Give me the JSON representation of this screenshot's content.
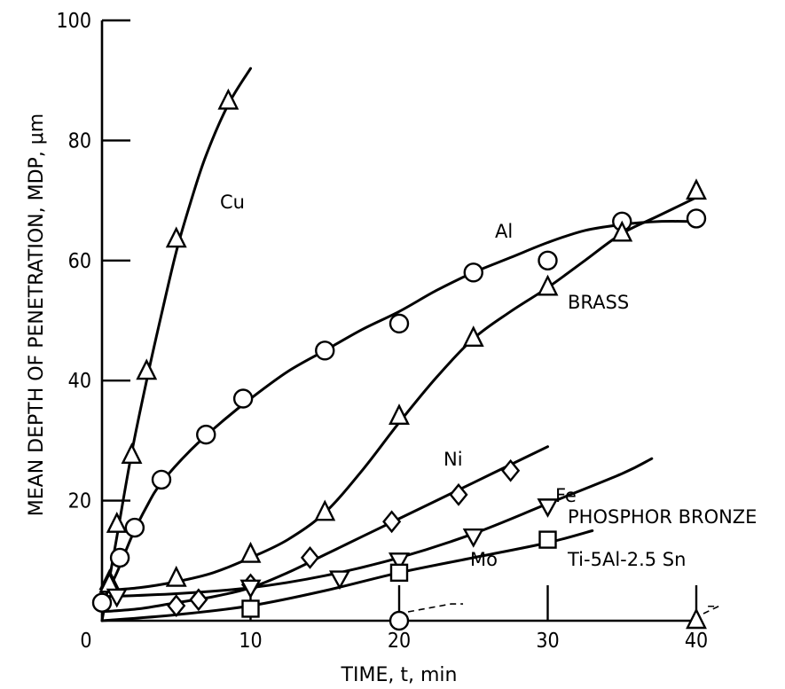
{
  "chart_data": {
    "type": "line",
    "title": "",
    "xlabel": "TIME, t, min",
    "ylabel": "MEAN DEPTH OF PENETRATION, MDP, μm",
    "xlim": [
      0,
      40
    ],
    "ylim": [
      0,
      100
    ],
    "x_ticks": [
      0,
      10,
      20,
      30,
      40
    ],
    "y_ticks": [
      0,
      20,
      40,
      60,
      80,
      100
    ],
    "grid": false,
    "legend": "none (series labeled directly on plot)",
    "series": [
      {
        "name": "Cu",
        "marker": "triangle",
        "points": [
          [
            0.5,
            6.5
          ],
          [
            1.0,
            16
          ],
          [
            2.0,
            27.5
          ],
          [
            3.0,
            41.5
          ],
          [
            5.0,
            63.5
          ],
          [
            8.5,
            86.5
          ]
        ],
        "curve": [
          [
            0,
            0
          ],
          [
            1.0,
            14
          ],
          [
            2.0,
            28
          ],
          [
            3.0,
            40
          ],
          [
            4.0,
            51
          ],
          [
            5.0,
            61.5
          ],
          [
            6.0,
            70
          ],
          [
            7.0,
            77.5
          ],
          [
            8.5,
            86
          ],
          [
            10.0,
            92
          ]
        ]
      },
      {
        "name": "Al",
        "marker": "circle",
        "points": [
          [
            0,
            3
          ],
          [
            1.2,
            10.5
          ],
          [
            2.2,
            15.5
          ],
          [
            4.0,
            23.5
          ],
          [
            7.0,
            31
          ],
          [
            9.5,
            37
          ],
          [
            15.0,
            45
          ],
          [
            20.0,
            49.5
          ],
          [
            25.0,
            58
          ],
          [
            30.0,
            60
          ],
          [
            35.0,
            66.5
          ],
          [
            40.0,
            67
          ]
        ],
        "curve": [
          [
            0,
            3
          ],
          [
            1.0,
            8
          ],
          [
            2.0,
            14
          ],
          [
            3.0,
            19
          ],
          [
            4.0,
            23
          ],
          [
            6.0,
            28.5
          ],
          [
            8.0,
            33
          ],
          [
            10.0,
            37
          ],
          [
            12.5,
            41.5
          ],
          [
            15.0,
            45
          ],
          [
            17.5,
            48.5
          ],
          [
            20.0,
            51.5
          ],
          [
            22.5,
            55
          ],
          [
            25.0,
            58
          ],
          [
            27.5,
            60.5
          ],
          [
            30.0,
            63
          ],
          [
            32.5,
            65
          ],
          [
            35.0,
            66
          ],
          [
            37.5,
            66.5
          ],
          [
            40.0,
            66.5
          ]
        ]
      },
      {
        "name": "BRASS",
        "marker": "triangle",
        "points": [
          [
            0.5,
            6
          ],
          [
            5.0,
            7
          ],
          [
            10.0,
            11
          ],
          [
            15.0,
            18
          ],
          [
            20.0,
            34
          ],
          [
            25.0,
            47
          ],
          [
            30.0,
            55.5
          ],
          [
            35.0,
            64.5
          ],
          [
            40.0,
            71.5
          ]
        ],
        "curve": [
          [
            0,
            5
          ],
          [
            2.5,
            5.5
          ],
          [
            5.0,
            6.5
          ],
          [
            7.5,
            8
          ],
          [
            10.0,
            10.5
          ],
          [
            12.5,
            13.5
          ],
          [
            15.0,
            18
          ],
          [
            17.5,
            25
          ],
          [
            20.0,
            33
          ],
          [
            22.5,
            40.5
          ],
          [
            25.0,
            47
          ],
          [
            27.5,
            51.5
          ],
          [
            30.0,
            55.5
          ],
          [
            32.5,
            60
          ],
          [
            35.0,
            64.5
          ],
          [
            37.5,
            67.5
          ],
          [
            40.0,
            70.5
          ]
        ]
      },
      {
        "name": "Ni",
        "marker": "diamond",
        "points": [
          [
            5.0,
            2.5
          ],
          [
            6.5,
            3.5
          ],
          [
            10.0,
            6
          ],
          [
            14.0,
            10.5
          ],
          [
            19.5,
            16.5
          ],
          [
            24.0,
            21
          ],
          [
            27.5,
            25
          ]
        ],
        "curve": [
          [
            0,
            1.5
          ],
          [
            2.5,
            2
          ],
          [
            5.0,
            3
          ],
          [
            7.5,
            4
          ],
          [
            10.0,
            5.5
          ],
          [
            12.5,
            8
          ],
          [
            15.0,
            11
          ],
          [
            17.5,
            14
          ],
          [
            20.0,
            17
          ],
          [
            22.5,
            20
          ],
          [
            25.0,
            23
          ],
          [
            27.5,
            26
          ],
          [
            30.0,
            29
          ]
        ]
      },
      {
        "name": "Fe",
        "marker": "triangle-down",
        "points": [
          [
            1.0,
            4
          ],
          [
            10.0,
            5.5
          ],
          [
            16.0,
            7
          ],
          [
            20.0,
            10
          ],
          [
            25.0,
            14
          ],
          [
            30.0,
            19
          ]
        ],
        "curve": [
          [
            0,
            4
          ],
          [
            5.0,
            4.5
          ],
          [
            10.0,
            5.5
          ],
          [
            15.0,
            7.5
          ],
          [
            20.0,
            10.5
          ],
          [
            25.0,
            14.5
          ],
          [
            30.0,
            19.5
          ],
          [
            35.0,
            24.5
          ],
          [
            37.0,
            27
          ]
        ]
      },
      {
        "name": "PHOSPHOR BRONZE",
        "marker": "square",
        "points": [
          [
            10.0,
            2
          ],
          [
            20.0,
            8
          ],
          [
            30.0,
            13.5
          ]
        ],
        "curve": [
          [
            0,
            0
          ],
          [
            5.0,
            1
          ],
          [
            10.0,
            2.5
          ],
          [
            15.0,
            5
          ],
          [
            20.0,
            8
          ],
          [
            25.0,
            10.5
          ],
          [
            30.0,
            13
          ],
          [
            33.0,
            15
          ]
        ]
      },
      {
        "name": "Mo",
        "marker": "circle",
        "points": [
          [
            20.0,
            0
          ]
        ]
      },
      {
        "name": "Ti-5Al-2.5 Sn",
        "marker": "triangle",
        "points": [
          [
            40.0,
            0
          ]
        ]
      }
    ]
  }
}
